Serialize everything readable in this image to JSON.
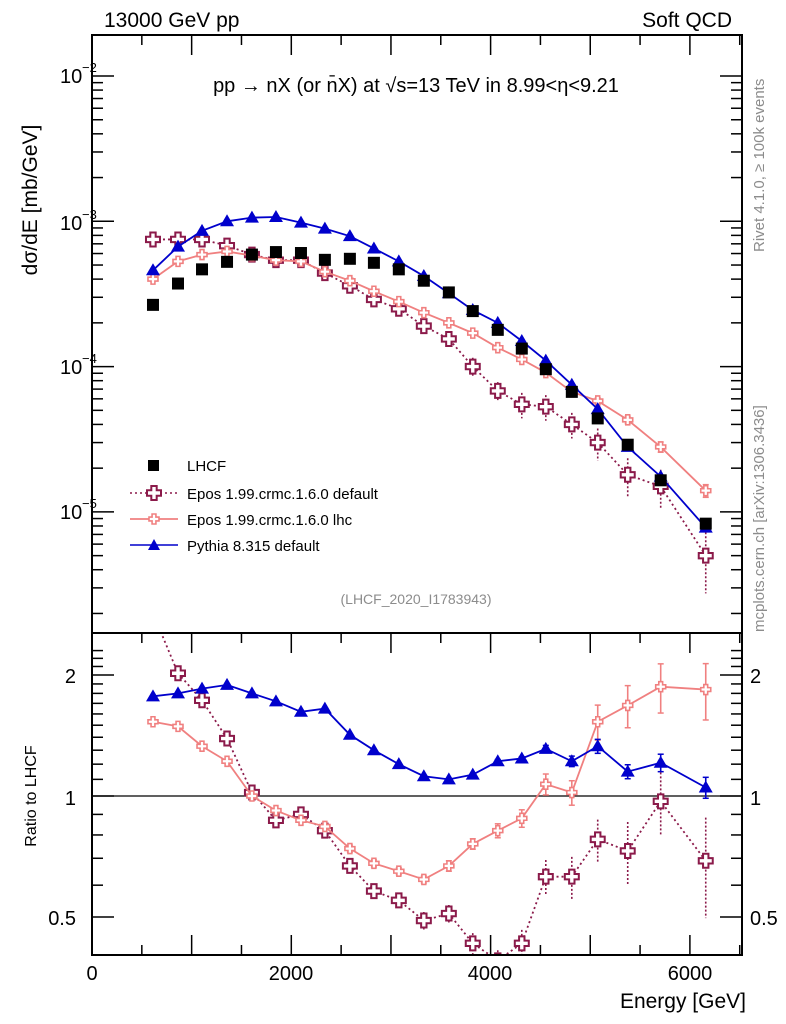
{
  "header": {
    "left": "13000 GeV pp",
    "right": "Soft QCD"
  },
  "side_annotations": {
    "top": "Rivet 4.1.0, ≥ 100k events",
    "bottom": "mcplots.cern.ch [arXiv:1306.3436]"
  },
  "chart_data": [
    {
      "type": "scatter",
      "panel": "main",
      "title": "pp → nX (or n̄X) at √s=13 TeV in 8.99<η<9.21",
      "xlabel": "Energy [GeV]",
      "ylabel": "dσ/dE [mb/GeV]",
      "yscale": "log",
      "ylim": [
        1.2e-06,
        0.022
      ],
      "xlim": [
        0,
        6530
      ],
      "ytick_labels": [
        {
          "value": 0.01,
          "base": "10",
          "exp": "−2"
        },
        {
          "value": 0.001,
          "base": "10",
          "exp": "−3"
        },
        {
          "value": 0.0001,
          "base": "10",
          "exp": "−4"
        },
        {
          "value": 1e-05,
          "base": "10",
          "exp": "−5"
        }
      ],
      "watermark": "(LHCF_2020_I1783943)",
      "legend_position": "bottom-left",
      "x": [
        612,
        863,
        1104,
        1355,
        1605,
        1846,
        2097,
        2337,
        2588,
        2829,
        3079,
        3330,
        3581,
        3821,
        4072,
        4313,
        4554,
        4815,
        5075,
        5376,
        5707,
        6159
      ],
      "series": [
        {
          "name": "LHCF",
          "style": "data",
          "color": "#000000",
          "marker": "square",
          "values": [
            0.000266,
            0.000373,
            0.000467,
            0.000526,
            0.00059,
            0.000614,
            0.000605,
            0.000543,
            0.000552,
            0.000518,
            0.000467,
            0.00039,
            0.000324,
            0.000241,
            0.000179,
            0.000133,
            9.6e-05,
            6.7e-05,
            4.4e-05,
            2.9e-05,
            1.65e-05,
            8.3e-06
          ]
        },
        {
          "name": "Epos 1.99.crmc.1.6.0 default",
          "style": "dotted",
          "color": "#8b1a4a",
          "marker": "open-cross",
          "values": [
            0.00075,
            0.00075,
            0.00075,
            0.00068,
            0.00059,
            0.00054,
            0.00054,
            0.00044,
            0.00036,
            0.00029,
            0.00025,
            0.00019,
            0.000155,
            0.0001,
            6.8e-05,
            5.5e-05,
            5.3e-05,
            4e-05,
            3e-05,
            1.8e-05,
            1.5e-05,
            5e-06
          ],
          "errors": [
            0,
            0,
            0,
            0,
            0,
            0,
            0,
            0,
            0,
            0,
            0.1,
            0.1,
            0.1,
            0.15,
            0.15,
            0.2,
            0.2,
            0.2,
            0.25,
            0.3,
            0.3,
            0.45
          ]
        },
        {
          "name": "Epos 1.99.crmc.1.6.0 lhc",
          "style": "solid",
          "color": "#f08080",
          "marker": "open-cross-small",
          "values": [
            0.0004,
            0.00053,
            0.00059,
            0.00062,
            0.00058,
            0.00054,
            0.00053,
            0.00045,
            0.00039,
            0.00033,
            0.00028,
            0.000235,
            0.0002,
            0.00017,
            0.000135,
            0.000112,
            9.1e-05,
            6.7e-05,
            5.8e-05,
            4.3e-05,
            2.8e-05,
            1.4e-05
          ],
          "errors": [
            0,
            0,
            0,
            0,
            0,
            0,
            0,
            0,
            0,
            0,
            0,
            0,
            0,
            0,
            0,
            0,
            0,
            0,
            0.05,
            0.06,
            0.08,
            0.1
          ]
        },
        {
          "name": "Pythia 8.315 default",
          "style": "solid",
          "color": "#0000cc",
          "marker": "triangle",
          "values": [
            0.00046,
            0.00067,
            0.00086,
            0.001,
            0.00106,
            0.00107,
            0.00098,
            0.00089,
            0.00079,
            0.00065,
            0.00053,
            0.00042,
            0.00032,
            0.000245,
            0.0002,
            0.00015,
            0.00011,
            7.5e-05,
            5.1e-05,
            2.8e-05,
            1.75e-05,
            7.8e-06
          ]
        }
      ]
    },
    {
      "type": "scatter",
      "panel": "ratio",
      "xlabel": "Energy [GeV]",
      "ylabel": "Ratio to LHCF",
      "yscale": "log",
      "ylim": [
        0.42,
        2.35
      ],
      "xlim": [
        0,
        6530
      ],
      "xticks": [
        0,
        2000,
        4000,
        6000
      ],
      "yticks": [
        0.5,
        1,
        2
      ],
      "reference_line": 1,
      "x": [
        612,
        863,
        1104,
        1355,
        1605,
        1846,
        2097,
        2337,
        2588,
        2829,
        3079,
        3330,
        3581,
        3821,
        4072,
        4313,
        4554,
        4815,
        5075,
        5376,
        5707,
        6159
      ],
      "series": [
        {
          "name": "Epos 1.99.crmc.1.6.0 default",
          "values": [
            2.85,
            2.02,
            1.73,
            1.39,
            1.02,
            0.87,
            0.9,
            0.82,
            0.67,
            0.58,
            0.55,
            0.49,
            0.51,
            0.43,
            0.39,
            0.43,
            0.63,
            0.63,
            0.78,
            0.73,
            0.97,
            0.69
          ],
          "errors": [
            0,
            0,
            0.03,
            0.03,
            0.03,
            0.03,
            0.03,
            0.03,
            0.04,
            0.04,
            0.04,
            0.05,
            0.05,
            0.06,
            0.06,
            0.08,
            0.1,
            0.12,
            0.12,
            0.18,
            0.18,
            0.28
          ]
        },
        {
          "name": "Epos 1.99.crmc.1.6.0 lhc",
          "values": [
            1.53,
            1.49,
            1.33,
            1.22,
            1.0,
            0.92,
            0.87,
            0.84,
            0.74,
            0.68,
            0.65,
            0.62,
            0.67,
            0.76,
            0.82,
            0.88,
            1.07,
            1.02,
            1.53,
            1.68,
            1.87,
            1.84
          ],
          "errors": [
            0,
            0,
            0.01,
            0.01,
            0.01,
            0.01,
            0.01,
            0.01,
            0.02,
            0.02,
            0.02,
            0.02,
            0.03,
            0.03,
            0.04,
            0.05,
            0.06,
            0.07,
            0.1,
            0.12,
            0.14,
            0.16
          ]
        },
        {
          "name": "Pythia 8.315 default",
          "values": [
            1.77,
            1.8,
            1.85,
            1.89,
            1.8,
            1.72,
            1.62,
            1.65,
            1.42,
            1.3,
            1.2,
            1.12,
            1.1,
            1.13,
            1.22,
            1.24,
            1.31,
            1.22,
            1.33,
            1.15,
            1.21,
            1.05
          ],
          "errors": [
            0,
            0,
            0,
            0,
            0,
            0,
            0,
            0,
            0,
            0,
            0,
            0,
            0,
            0,
            0.01,
            0.01,
            0.02,
            0.03,
            0.04,
            0.04,
            0.05,
            0.06
          ]
        }
      ]
    }
  ]
}
